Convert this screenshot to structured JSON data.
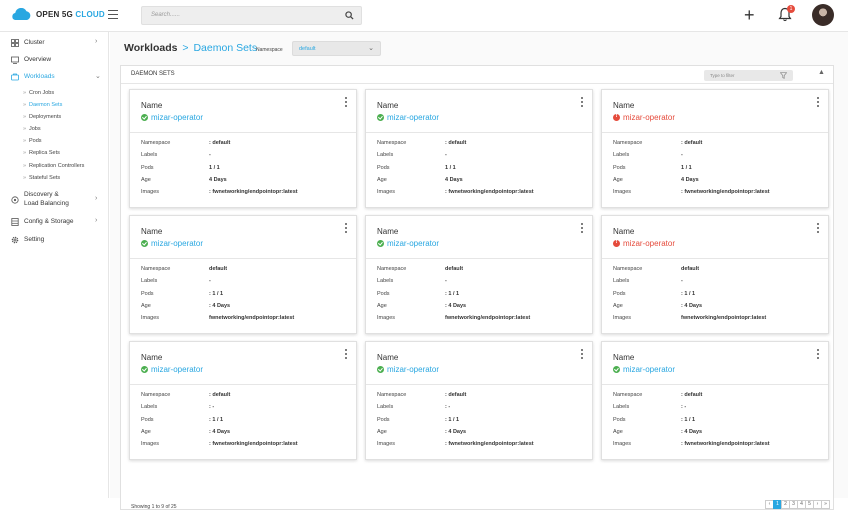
{
  "brand": {
    "name_part1": "OPEN 5G",
    "name_part2": "CLOUD"
  },
  "search": {
    "placeholder": "Search......"
  },
  "notifications": {
    "count": "1"
  },
  "sidebar": {
    "items": [
      {
        "label": "Cluster",
        "icon": "cluster-icon",
        "chevron": "›"
      },
      {
        "label": "Overview",
        "icon": "overview-icon"
      },
      {
        "label": "Workloads",
        "icon": "workloads-icon",
        "chevron": "⌄",
        "active": true
      },
      {
        "label": "Discovery &",
        "label2": "Load Balancing",
        "icon": "discovery-icon",
        "chevron": "›"
      },
      {
        "label": "Config & Storage",
        "icon": "storage-icon",
        "chevron": "›"
      },
      {
        "label": "Setting",
        "icon": "gear-icon"
      }
    ],
    "sub_items": [
      "Cron Jobs",
      "Daemon Sets",
      "Deployments",
      "Jobs",
      "Pods",
      "Replica Sets",
      "Replication Controllers",
      "Stateful Sets"
    ],
    "active_sub": "Daemon Sets"
  },
  "breadcrumb": {
    "root": "Workloads",
    "separator": ">",
    "current": "Daemon Sets"
  },
  "namespace": {
    "label": "Namespace",
    "value": "default"
  },
  "panel": {
    "title": "DAEMON SETS",
    "filter_placeholder": "Type to filter"
  },
  "card_labels": {
    "name": "Name",
    "namespace": "Namespace",
    "labels": "Labels",
    "pods": "Pods",
    "age": "Age",
    "images": "Images"
  },
  "cards": [
    {
      "name": "mizar-operator",
      "status": "ok",
      "namespace": ": default",
      "labels": "-",
      "pods": "1 / 1",
      "age": "4 Days",
      "images": ": fwnetworking/endpointopr:latest"
    },
    {
      "name": "mizar-operator",
      "status": "ok",
      "namespace": ": default",
      "labels": "-",
      "pods": "1 / 1",
      "age": "4 Days",
      "images": ": fwnetworking/endpointopr:latest"
    },
    {
      "name": "mizar-operator",
      "status": "error",
      "namespace": ": default",
      "labels": "-",
      "pods": "1 / 1",
      "age": "4 Days",
      "images": ": fwnetworking/endpointopr:latest"
    },
    {
      "name": "mizar-operator",
      "status": "ok",
      "namespace": "default",
      "labels": "-",
      "pods": ": 1 / 1",
      "age": ": 4 Days",
      "images": "fwnetworking/endpointopr:latest"
    },
    {
      "name": "mizar-operator",
      "status": "ok",
      "namespace": "default",
      "labels": "-",
      "pods": ": 1 / 1",
      "age": ": 4 Days",
      "images": "fwnetworking/endpointopr:latest"
    },
    {
      "name": "mizar-operator",
      "status": "error",
      "namespace": "default",
      "labels": "-",
      "pods": ": 1 / 1",
      "age": ": 4 Days",
      "images": "fwnetworking/endpointopr:latest"
    },
    {
      "name": "mizar-operator",
      "status": "ok",
      "namespace": ": default",
      "labels": ": -",
      "pods": ": 1 / 1",
      "age": ": 4 Days",
      "images": ": fwnetworking/endpointopr:latest"
    },
    {
      "name": "mizar-operator",
      "status": "ok",
      "namespace": ": default",
      "labels": ": -",
      "pods": ": 1 / 1",
      "age": ": 4 Days",
      "images": ": fwnetworking/endpointopr:latest"
    },
    {
      "name": "mizar-operator",
      "status": "ok",
      "namespace": ": default",
      "labels": ": -",
      "pods": ": 1 / 1",
      "age": ": 4 Days",
      "images": ": fwnetworking/endpointopr:latest"
    }
  ],
  "footer": {
    "showing": "Showing 1 to 9 of 25"
  },
  "pagination": [
    "‹",
    "1",
    "2",
    "3",
    "4",
    "5",
    "›",
    "»"
  ],
  "colors": {
    "accent": "#29a7e1",
    "ok": "#4caf50",
    "error": "#e54b3c"
  }
}
